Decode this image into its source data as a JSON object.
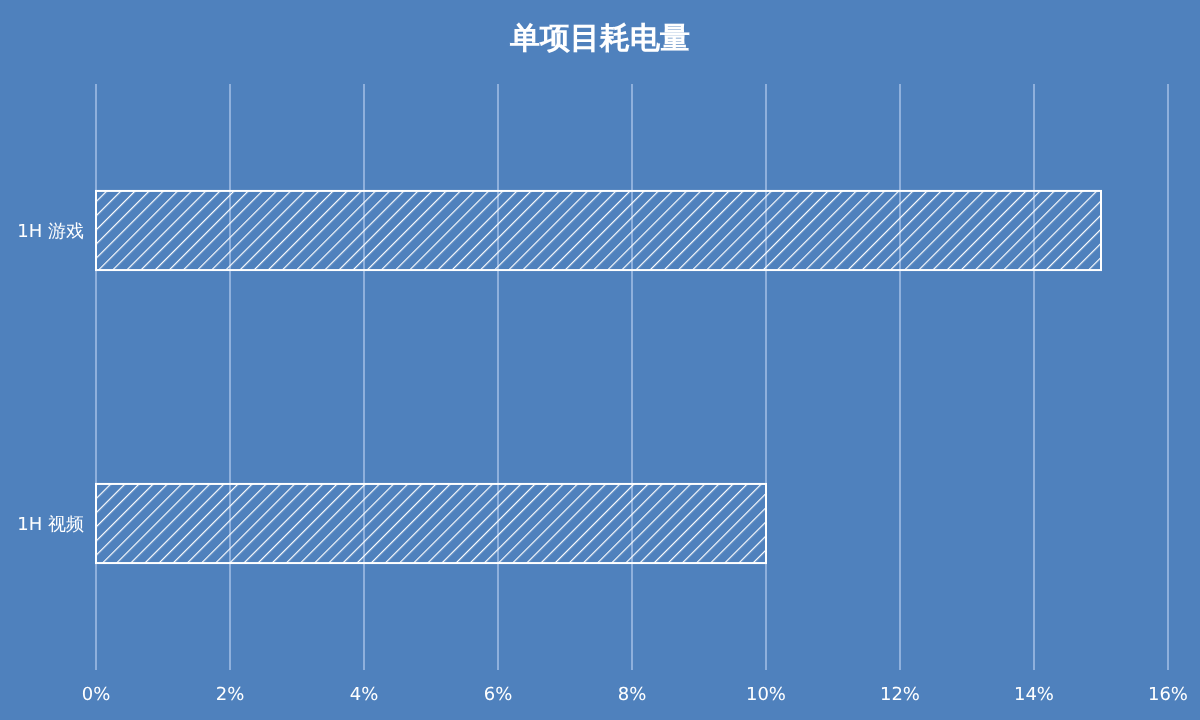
{
  "chart_data": {
    "type": "bar",
    "title": "单项目耗电量",
    "orientation": "horizontal",
    "categories": [
      "1H 游戏",
      "1H 视频"
    ],
    "values": [
      15,
      10
    ],
    "color": "#ffffff",
    "xlim": [
      0,
      16
    ],
    "xticks": [
      {
        "value": 0,
        "label": "0%"
      },
      {
        "value": 2,
        "label": "2%"
      },
      {
        "value": 4,
        "label": "4%"
      },
      {
        "value": 6,
        "label": "6%"
      },
      {
        "value": 8,
        "label": "8%"
      },
      {
        "value": 10,
        "label": "10%"
      },
      {
        "value": 12,
        "label": "12%"
      },
      {
        "value": 14,
        "label": "14%"
      },
      {
        "value": 16,
        "label": "16%"
      }
    ],
    "grid": "x"
  }
}
